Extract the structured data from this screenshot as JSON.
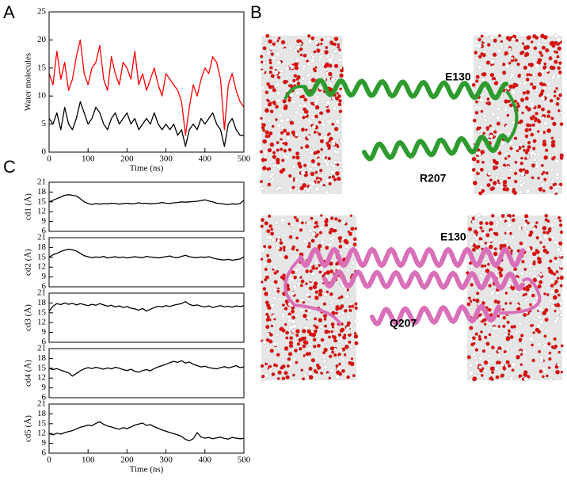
{
  "panel_labels": [
    "A",
    "B",
    "C"
  ],
  "structures": [
    {
      "top_label": "E130",
      "bottom_label": "R207"
    },
    {
      "top_label": "E130",
      "bottom_label": "Q207"
    }
  ],
  "chart_data": [
    {
      "type": "line",
      "xlabel": "Time (ns)",
      "ylabel": "Water molecules",
      "x": [
        0,
        10,
        20,
        30,
        40,
        50,
        60,
        70,
        80,
        90,
        100,
        110,
        120,
        130,
        140,
        150,
        160,
        170,
        180,
        190,
        200,
        210,
        220,
        230,
        240,
        250,
        260,
        270,
        280,
        290,
        300,
        310,
        320,
        330,
        340,
        350,
        360,
        370,
        380,
        390,
        400,
        410,
        420,
        430,
        440,
        450,
        460,
        470,
        480,
        490,
        500
      ],
      "series": [
        {
          "color": "#ff0000",
          "values": [
            14,
            12,
            18,
            13,
            16,
            11,
            13,
            17,
            20,
            14,
            12,
            15,
            16,
            19,
            13,
            11,
            17,
            14,
            12,
            16,
            15,
            13,
            18,
            12,
            14,
            11,
            13,
            15,
            12,
            10,
            14,
            13,
            12,
            11,
            9,
            3,
            8,
            12,
            10,
            13,
            15,
            14,
            17,
            16,
            13,
            4,
            12,
            14,
            11,
            9,
            8
          ]
        },
        {
          "color": "#000000",
          "values": [
            6,
            5,
            7,
            4,
            8,
            5,
            4,
            6,
            9,
            7,
            5,
            6,
            8,
            7,
            5,
            4,
            6,
            7,
            5,
            6,
            7,
            5,
            6,
            4,
            5,
            6,
            5,
            7,
            5,
            4,
            5,
            4,
            5,
            3,
            4,
            1,
            4,
            5,
            4,
            6,
            5,
            6,
            7,
            5,
            4,
            1,
            5,
            6,
            4,
            3,
            3
          ]
        }
      ],
      "xlim": [
        0,
        500
      ],
      "xticks": [
        0,
        100,
        200,
        300,
        400,
        500
      ],
      "ylim": [
        0,
        25
      ],
      "yticks": [
        0,
        5,
        10,
        15,
        20,
        25
      ]
    },
    {
      "type": "line",
      "ylabel": "cd1 (Å)",
      "color": "#000000",
      "x": [
        0,
        10,
        20,
        30,
        40,
        50,
        60,
        70,
        80,
        90,
        100,
        110,
        120,
        130,
        140,
        150,
        160,
        170,
        180,
        190,
        200,
        210,
        220,
        230,
        240,
        250,
        260,
        270,
        280,
        290,
        300,
        310,
        320,
        330,
        340,
        350,
        360,
        370,
        380,
        390,
        400,
        410,
        420,
        430,
        440,
        450,
        460,
        470,
        480,
        490,
        500
      ],
      "values": [
        15,
        15.5,
        16,
        16.5,
        17,
        17.2,
        17,
        16.8,
        16,
        15,
        14.5,
        14.2,
        14.5,
        14.3,
        14.5,
        14.4,
        14.6,
        14.5,
        14.3,
        14.5,
        14.6,
        14.4,
        14.5,
        14.7,
        14.5,
        14.6,
        14.4,
        14.5,
        14.6,
        14.8,
        14.6,
        14.5,
        14.7,
        14.8,
        15,
        14.9,
        15,
        15.1,
        15.2,
        15.4,
        15.6,
        15.3,
        15,
        14.6,
        14.5,
        14.3,
        14.2,
        14.4,
        14.3,
        14.5,
        15.5
      ],
      "xlim": [
        0,
        500
      ],
      "ylim": [
        6,
        21
      ],
      "yticks": [
        6,
        9,
        12,
        15,
        18,
        21
      ]
    },
    {
      "type": "line",
      "ylabel": "cd2 (Å)",
      "color": "#000000",
      "x": [
        0,
        10,
        20,
        30,
        40,
        50,
        60,
        70,
        80,
        90,
        100,
        110,
        120,
        130,
        140,
        150,
        160,
        170,
        180,
        190,
        200,
        210,
        220,
        230,
        240,
        250,
        260,
        270,
        280,
        290,
        300,
        310,
        320,
        330,
        340,
        350,
        360,
        370,
        380,
        390,
        400,
        410,
        420,
        430,
        440,
        450,
        460,
        470,
        480,
        490,
        500
      ],
      "values": [
        15,
        15.8,
        16.2,
        16.8,
        17.2,
        17.5,
        17.3,
        16.9,
        16.2,
        15.5,
        15.2,
        14.9,
        15.1,
        15,
        15.3,
        14.8,
        15,
        15.2,
        14.9,
        15.1,
        14.8,
        15,
        15.2,
        15,
        14.9,
        15.3,
        15.1,
        15,
        14.8,
        15,
        15.2,
        15.4,
        15,
        14.9,
        15.3,
        15.6,
        15.2,
        15,
        14.9,
        15.1,
        15,
        15.2,
        14.8,
        14.5,
        14.3,
        14.2,
        14.4,
        14.1,
        14.3,
        14.5,
        15.2
      ],
      "xlim": [
        0,
        500
      ],
      "ylim": [
        6,
        21
      ],
      "yticks": [
        6,
        9,
        12,
        15,
        18,
        21
      ]
    },
    {
      "type": "line",
      "ylabel": "cd3 (Å)",
      "color": "#000000",
      "x": [
        0,
        10,
        20,
        30,
        40,
        50,
        60,
        70,
        80,
        90,
        100,
        110,
        120,
        130,
        140,
        150,
        160,
        170,
        180,
        190,
        200,
        210,
        220,
        230,
        240,
        250,
        260,
        270,
        280,
        290,
        300,
        310,
        320,
        330,
        340,
        350,
        360,
        370,
        380,
        390,
        400,
        410,
        420,
        430,
        440,
        450,
        460,
        470,
        480,
        490,
        500
      ],
      "values": [
        15.5,
        17,
        17.8,
        17.5,
        18,
        17.6,
        17.9,
        17.4,
        17.8,
        17.5,
        17.2,
        17.6,
        17.3,
        17.8,
        17.4,
        17,
        17.3,
        16.8,
        17.1,
        16.6,
        16.9,
        16.4,
        16.2,
        15.8,
        16.3,
        15.5,
        16.1,
        16.6,
        17,
        16.8,
        17.2,
        16.9,
        17.3,
        17.6,
        17.8,
        18.4,
        17.6,
        17.2,
        17.4,
        17,
        16.8,
        17.1,
        16.6,
        16.9,
        17.2,
        16.8,
        17,
        16.7,
        17.1,
        16.9,
        17.2
      ],
      "xlim": [
        0,
        500
      ],
      "ylim": [
        6,
        21
      ],
      "yticks": [
        6,
        9,
        12,
        15,
        18,
        21
      ]
    },
    {
      "type": "line",
      "ylabel": "cd4 (Å)",
      "color": "#000000",
      "x": [
        0,
        10,
        20,
        30,
        40,
        50,
        60,
        70,
        80,
        90,
        100,
        110,
        120,
        130,
        140,
        150,
        160,
        170,
        180,
        190,
        200,
        210,
        220,
        230,
        240,
        250,
        260,
        270,
        280,
        290,
        300,
        310,
        320,
        330,
        340,
        350,
        360,
        370,
        380,
        390,
        400,
        410,
        420,
        430,
        440,
        450,
        460,
        470,
        480,
        490,
        500
      ],
      "values": [
        15,
        14.6,
        14.9,
        14.4,
        14,
        13.6,
        12.6,
        13.4,
        14.2,
        14.8,
        15.2,
        14.9,
        15.3,
        15,
        14.7,
        15.1,
        14.8,
        15.3,
        15,
        14.6,
        14.3,
        14.7,
        14.1,
        13.8,
        14.3,
        14.6,
        14.2,
        14.9,
        15.4,
        15.8,
        16.2,
        16.7,
        17.1,
        16.8,
        17.3,
        16.6,
        16.9,
        16.2,
        15.8,
        15.4,
        15.6,
        15.2,
        15,
        14.8,
        15.2,
        15.5,
        15.1,
        15.4,
        15.8,
        15.2,
        15.4
      ],
      "xlim": [
        0,
        500
      ],
      "ylim": [
        6,
        21
      ],
      "yticks": [
        6,
        9,
        12,
        15,
        18,
        21
      ]
    },
    {
      "type": "line",
      "xlabel": "Time (ns)",
      "ylabel": "cd5 (Å)",
      "color": "#000000",
      "x": [
        0,
        10,
        20,
        30,
        40,
        50,
        60,
        70,
        80,
        90,
        100,
        110,
        120,
        130,
        140,
        150,
        160,
        170,
        180,
        190,
        200,
        210,
        220,
        230,
        240,
        250,
        260,
        270,
        280,
        290,
        300,
        310,
        320,
        330,
        340,
        350,
        360,
        370,
        380,
        390,
        400,
        410,
        420,
        430,
        440,
        450,
        460,
        470,
        480,
        490,
        500
      ],
      "values": [
        12,
        11.6,
        12.1,
        11.8,
        12.3,
        12.6,
        12.9,
        13.4,
        13.9,
        14.2,
        14.6,
        14.4,
        15.1,
        15.6,
        14.8,
        14.3,
        14,
        13.6,
        13.3,
        13.8,
        13.5,
        14,
        14.6,
        14.9,
        15.2,
        14.5,
        14.7,
        14.1,
        13.6,
        13.1,
        12.7,
        12.3,
        12,
        11.6,
        11.1,
        10.2,
        9.8,
        10.4,
        12.3,
        10.9,
        10.6,
        10.8,
        10.4,
        10.7,
        10.9,
        10.5,
        10.3,
        10.8,
        10.6,
        10.4,
        10.5
      ],
      "xlim": [
        0,
        500
      ],
      "xticks": [
        0,
        100,
        200,
        300,
        400,
        500
      ],
      "ylim": [
        6,
        21
      ],
      "yticks": [
        6,
        9,
        12,
        15,
        18,
        21
      ]
    }
  ]
}
